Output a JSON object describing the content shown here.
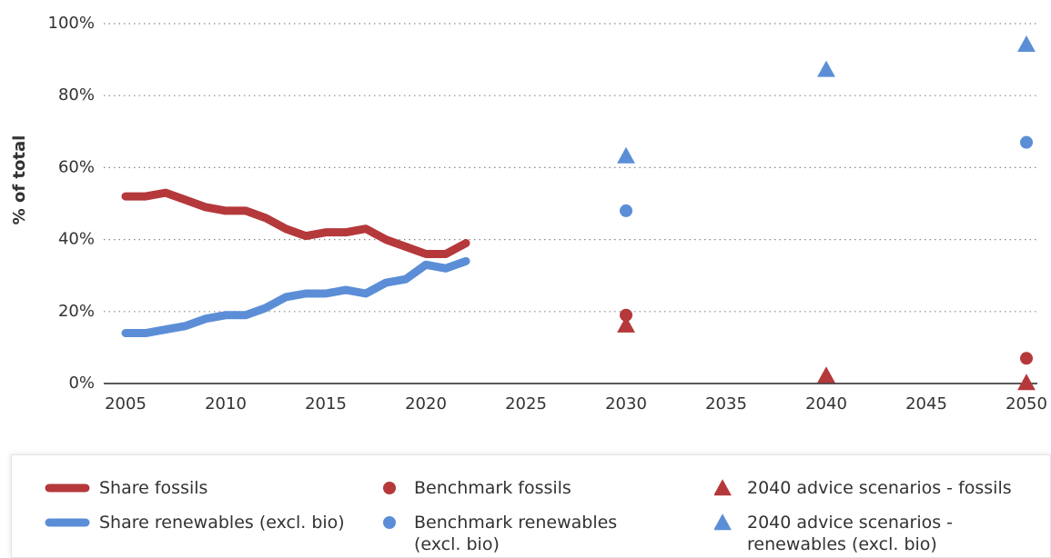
{
  "chart_data": {
    "type": "line",
    "y_label": "% of total",
    "xlim": [
      2005,
      2050
    ],
    "xticks": [
      2005,
      2010,
      2015,
      2020,
      2025,
      2030,
      2035,
      2040,
      2045,
      2050
    ],
    "ylim": [
      0,
      100
    ],
    "yticks": [
      {
        "value": 0,
        "label": "0%"
      },
      {
        "value": 20,
        "label": "20%"
      },
      {
        "value": 40,
        "label": "40%"
      },
      {
        "value": 60,
        "label": "60%"
      },
      {
        "value": 80,
        "label": "80%"
      },
      {
        "value": 100,
        "label": "100%"
      }
    ],
    "grid": true,
    "legend": "bottom",
    "series": [
      {
        "name": "Share fossils",
        "color": "#b5383b",
        "marker": "line",
        "x": [
          2005,
          2006,
          2007,
          2008,
          2009,
          2010,
          2011,
          2012,
          2013,
          2014,
          2015,
          2016,
          2017,
          2018,
          2019,
          2020,
          2021,
          2022
        ],
        "values": [
          52,
          52,
          53,
          51,
          49,
          48,
          48,
          46,
          43,
          41,
          42,
          42,
          43,
          40,
          38,
          36,
          36,
          39
        ]
      },
      {
        "name": "Share renewables (excl. bio)",
        "color": "#5b8ed6",
        "marker": "line",
        "x": [
          2005,
          2006,
          2007,
          2008,
          2009,
          2010,
          2011,
          2012,
          2013,
          2014,
          2015,
          2016,
          2017,
          2018,
          2019,
          2020,
          2021,
          2022
        ],
        "values": [
          14,
          14,
          15,
          16,
          18,
          19,
          19,
          21,
          24,
          25,
          25,
          26,
          25,
          28,
          29,
          33,
          32,
          34
        ]
      },
      {
        "name": "Benchmark fossils",
        "color": "#b5383b",
        "marker": "circle",
        "x": [
          2030,
          2050
        ],
        "values": [
          19,
          7
        ]
      },
      {
        "name": "Benchmark renewables (excl. bio)",
        "color": "#5b8ed6",
        "marker": "circle",
        "x": [
          2030,
          2050
        ],
        "values": [
          48,
          67
        ]
      },
      {
        "name": "2040 advice scenarios - fossils",
        "color": "#b5383b",
        "marker": "triangle",
        "x": [
          2030,
          2040,
          2050
        ],
        "values": [
          16,
          2,
          0
        ]
      },
      {
        "name": "2040 advice scenarios - renewables (excl. bio)",
        "color": "#5b8ed6",
        "marker": "triangle",
        "x": [
          2030,
          2040,
          2050
        ],
        "values": [
          63,
          87,
          94
        ]
      }
    ]
  }
}
